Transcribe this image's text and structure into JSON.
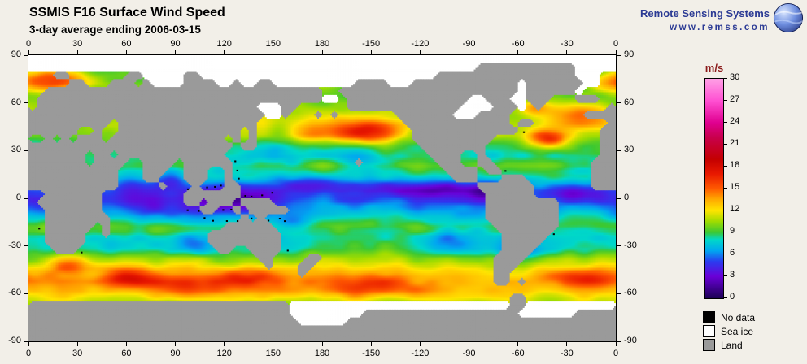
{
  "header": {
    "title": "SSMIS F16 Surface Wind Speed",
    "subtitle": "3-day average ending 2006-03-15"
  },
  "branding": {
    "name": "Remote Sensing Systems",
    "url": "www.remss.com",
    "color": "#2b3a94"
  },
  "map": {
    "lon_labels": [
      "0",
      "30",
      "60",
      "90",
      "120",
      "150",
      "180",
      "-150",
      "-120",
      "-90",
      "-60",
      "-30",
      "0"
    ],
    "lat_labels": [
      "90",
      "60",
      "30",
      "0",
      "-30",
      "-60",
      "-90"
    ],
    "colors": {
      "land": "#9a9a9a",
      "ice": "#ffffff",
      "nodata": "#000000",
      "border": "#000000"
    },
    "land_mask": [
      "IIIIIIIIIIIIIIIIIIIIIIIIIIIIIIIIIIIIIIIIIIIIIIIIIIIIIIIIIIIIIIIIIIIIII",
      "IIIIIIIIIIIIIIIIIIIIIIIIIIIIIIIIIIIIIIIIIIIIIIIIIIIIIIILLLLLLLLLLLLIIIII",
      "...LL.......LLIIIIILLIIIIIIIIIIIIIIIIIIIIIIIIIIIIILLLLLLLLLLLLLLLLLIII..",
      ".....LL...LLL.LIIIILLLLIILIILLIIIIIIIIIILLLLIIILLLLLLLLLLLLLILLLLLLLII..",
      "..LLLLLLLLLLLLLLLLLLLLLLLLLLLLLLLLLL..LLLLLLLLLLLLLLLLLLLLLLILLLLLLI....",
      ".LLLLLLLLLLLLLLLLLLLLLLLLLLLLLLLLLLLII.LLLLLLLLLLLLLLLIILLLIILLL...LLL..",
      ".LLLLLLLLLLLLLLLLLLLLLLLLLLLIIILL......LLLLLLLLLLLLLLIIIILLLI.L........L",
      "LLLLLLLLLLLLLLLLLLLLLLLLLLLLLIIL...L.L.......LLLLLLLIIILLLL.........LL",
      "LLLLLLLLLL.LLLLLLLLLLLLLLLLL..................LLLLLLLLLLLLL.LL.........L",
      "LLLLLL..L..LLLLLLLLLLLLLLL.L...................LLLLLLLLLLLLL..........LL",
      "..L.L.LLL.LLLLLLLLLLLLLL.L.L...................LLLLLLLLLL.............LL",
      "LLLLLLLLLLLLLLLLLLLLLLLLL.LL....................LLLLLLLL..............LL",
      "LLLLLLL.LL.LLLLLLLLLLLLL.........................LLLL..L..............LL",
      "LLLLLLL.LLLL..LLLL.LLLLLL...............L.........LLL..LL............LLL",
      "LLLLLLLLLLL...LLL..LLL..L..........................LLLL.LL...........LLL",
      "LLLLLLLLLLL...LL...LLL..L...........................LLL...LLL........LLL",
      "LLLLLLLLLLL.....L...L...LL.............................LLLLLLL.......LLL",
      "..LLLLLLL..........LLLLLLL..............................LLLLLL..........",
      ".LLLLLLLL..........LL.LLL.LLLL..........................LLLLLLLLL.......",
      "..LLLLLLL............LL..L.LLLLL........................LLLLLLLLL.......",
      "..LLLLLLLL................L.L...........................LLLLLLLLL.......",
      "..LLLLLL.L..............LLLLLL...........................LLLLLLLL.......",
      "..LLLLL..L............LLLLLLLLL...........................LLLLLL........",
      "..LLLLL...............LLLLLLLLL...........................LLLLL.........",
      "...LLL.................LL..LLLL...........................LLLL..........",
      "............................LL....LL.....................LLLL...........",
      ".............................L...LL......................LLL............",
      ".................................L.......................LL.............",
      ".........................................................LL.L...........",
      "........................................................................",
      "...........................................................LL...........",
      "LLLLLLLLLLLLLLLLLLLLLLLLLLLLLLLLIIIIIIIIIIIIIIIIIIIIIIIIIIILLIIIIIIIIIII",
      "LLLLLLLLLLLLLLLLLLLLLLLLLLLLLLLLIIIIIIIIILLLLLLLLLLLLLLLLLLLIIIIIIILLLLL",
      "LLLLLLLLLLLLLLLLLLLLLLLLLLLLLLLLLIIIIIILLLLLLLLLLLLLLLLLLLLLLLLLLLLLLLLL",
      "LLLLLLLLLLLLLLLLLLLLLLLLLLLLLLLLLLLLLLLLLLLLLLLLLLLLLLLLLLLLLLLLLLLLLLLL",
      "LLLLLLLLLLLLLLLLLLLLLLLLLLLLLLLLLLLLLLLLLLLLLLLLLLLLLLLLLLLLLLLLLLLLLLLL"
    ],
    "wind_profile": [
      [
        90,
        7
      ],
      [
        80,
        9
      ],
      [
        72,
        10.5
      ],
      [
        64,
        9.5
      ],
      [
        55,
        10.5
      ],
      [
        48,
        11
      ],
      [
        40,
        10.5
      ],
      [
        33,
        8.5
      ],
      [
        26,
        8
      ],
      [
        20,
        9
      ],
      [
        14,
        8
      ],
      [
        9,
        6.5
      ],
      [
        5,
        5.5
      ],
      [
        0,
        5.5
      ],
      [
        -6,
        6.5
      ],
      [
        -12,
        8
      ],
      [
        -18,
        9
      ],
      [
        -25,
        8
      ],
      [
        -32,
        8.5
      ],
      [
        -38,
        10.5
      ],
      [
        -45,
        12
      ],
      [
        -52,
        13
      ],
      [
        -58,
        13
      ],
      [
        -65,
        11
      ],
      [
        -72,
        9
      ],
      [
        -90,
        7
      ]
    ],
    "anomalies": [
      {
        "lon": 15,
        "lat": 74,
        "rlon": 24,
        "rlat": 7,
        "amp": 6
      },
      {
        "lon": 205,
        "lat": 42,
        "rlon": 22,
        "rlat": 8,
        "amp": 6.5
      },
      {
        "lon": 170,
        "lat": 40,
        "rlon": 12,
        "rlat": 6,
        "amp": 3
      },
      {
        "lon": 318,
        "lat": 37,
        "rlon": 14,
        "rlat": 6,
        "amp": 6
      },
      {
        "lon": 338,
        "lat": 52,
        "rlon": 18,
        "rlat": 8,
        "amp": 4.5
      },
      {
        "lon": 310,
        "lat": 57,
        "rlon": 9,
        "rlat": 5,
        "amp": 3.5
      },
      {
        "lon": 120,
        "lat": -2,
        "rlon": 28,
        "rlat": 11,
        "amp": -3.8
      },
      {
        "lon": 88,
        "lat": 12,
        "rlon": 9,
        "rlat": 6,
        "amp": -2.5
      },
      {
        "lon": 70,
        "lat": -4,
        "rlon": 18,
        "rlat": 9,
        "amp": -2.8
      },
      {
        "lon": 62,
        "lat": 10,
        "rlon": 10,
        "rlat": 7,
        "amp": -2
      },
      {
        "lon": 250,
        "lat": 6,
        "rlon": 40,
        "rlat": 5,
        "amp": -3.2
      },
      {
        "lon": 283,
        "lat": 4,
        "rlon": 10,
        "rlat": 6,
        "amp": -2.5
      },
      {
        "lon": 172,
        "lat": 9,
        "rlon": 25,
        "rlat": 6,
        "amp": -2.8
      },
      {
        "lon": 300,
        "lat": -33,
        "rlon": 12,
        "rlat": 7,
        "amp": -3
      },
      {
        "lon": 255,
        "lat": -28,
        "rlon": 18,
        "rlat": 8,
        "amp": -1.8
      },
      {
        "lon": 102,
        "lat": -29,
        "rlon": 12,
        "rlat": 7,
        "amp": -2.5
      },
      {
        "lon": 162,
        "lat": -15,
        "rlon": 10,
        "rlat": 6,
        "amp": -2.2
      },
      {
        "lon": 335,
        "lat": 3,
        "rlon": 14,
        "rlat": 5,
        "amp": -2.2
      },
      {
        "lon": 10,
        "lat": -5,
        "rlon": 12,
        "rlat": 6,
        "amp": -1.5
      },
      {
        "lon": 60,
        "lat": -50,
        "rlon": 18,
        "rlat": 6,
        "amp": 4
      },
      {
        "lon": 95,
        "lat": -54,
        "rlon": 25,
        "rlat": 7,
        "amp": 3
      },
      {
        "lon": 135,
        "lat": -50,
        "rlon": 20,
        "rlat": 6,
        "amp": 3
      },
      {
        "lon": 210,
        "lat": -54,
        "rlon": 30,
        "rlat": 7,
        "amp": 3.2
      },
      {
        "lon": 345,
        "lat": -50,
        "rlon": 22,
        "rlat": 6,
        "amp": 3.4
      },
      {
        "lon": 25,
        "lat": -42,
        "rlon": 12,
        "rlat": 6,
        "amp": 3
      },
      {
        "lon": 152,
        "lat": 28,
        "rlon": 12,
        "rlat": 6,
        "amp": -1.5
      },
      {
        "lon": 205,
        "lat": 25,
        "rlon": 15,
        "rlat": 6,
        "amp": -1
      }
    ],
    "noise": {
      "amp": 1.4,
      "xscale": 20,
      "yscale": 10,
      "seed": 11
    }
  },
  "colorbar": {
    "unit": "m/s",
    "unit_color": "#8b1a1a",
    "min": 0,
    "max": 30,
    "ticks": [
      "30",
      "27",
      "24",
      "21",
      "18",
      "15",
      "12",
      "9",
      "6",
      "3",
      "0"
    ],
    "stops": [
      [
        0,
        "#1c0054"
      ],
      [
        3,
        "#6a00d8"
      ],
      [
        5,
        "#2a3cf0"
      ],
      [
        6.5,
        "#00a8f0"
      ],
      [
        8,
        "#00d8c8"
      ],
      [
        9,
        "#3cc832"
      ],
      [
        10.5,
        "#a0dc00"
      ],
      [
        12,
        "#ffe400"
      ],
      [
        13.5,
        "#ffaa00"
      ],
      [
        15,
        "#ff5a00"
      ],
      [
        17,
        "#e81800"
      ],
      [
        19,
        "#c40000"
      ],
      [
        22,
        "#c8004c"
      ],
      [
        24,
        "#e00090"
      ],
      [
        27,
        "#ff50d2"
      ],
      [
        30,
        "#ffa0e6"
      ]
    ]
  },
  "legend": {
    "items": [
      {
        "label": "No data",
        "color": "#000000"
      },
      {
        "label": "Sea ice",
        "color": "#ffffff"
      },
      {
        "label": "Land",
        "color": "#9a9a9a"
      }
    ]
  }
}
